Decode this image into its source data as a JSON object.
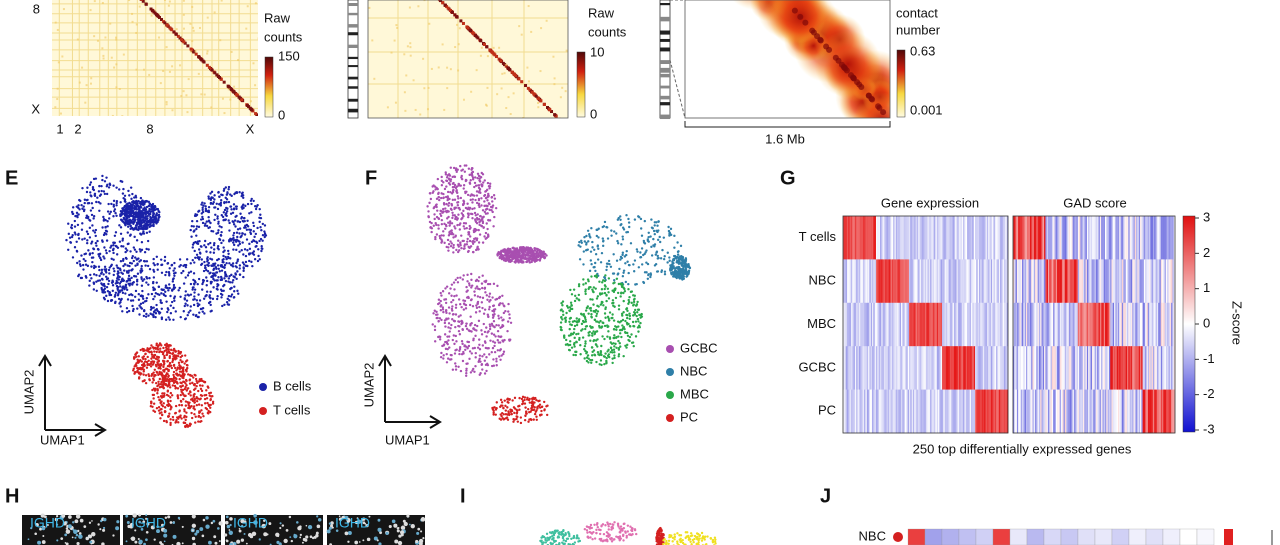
{
  "hic_genome": {
    "y_labels": [
      "8",
      "X"
    ],
    "x_labels": [
      "1",
      "2",
      "8",
      "X"
    ],
    "colorbar_title": [
      "Raw",
      "counts"
    ],
    "colorbar_max": 150,
    "colorbar_min": 0
  },
  "hic_chromosome": {
    "colorbar_title": [
      "Raw",
      "counts"
    ],
    "colorbar_max": 10,
    "colorbar_min": 0
  },
  "hic_region": {
    "colorbar_title": [
      "contact",
      "number"
    ],
    "colorbar_max": 0.63,
    "colorbar_min": 0.001,
    "scale_bar": "1.6 Mb"
  },
  "panel_e": {
    "label": "E",
    "y_axis": "UMAP2",
    "x_axis": "UMAP1",
    "legend": [
      "B cells",
      "T cells"
    ]
  },
  "panel_f": {
    "label": "F",
    "y_axis": "UMAP2",
    "x_axis": "UMAP1",
    "legend": [
      "GCBC",
      "NBC",
      "MBC",
      "PC"
    ]
  },
  "panel_g": {
    "label": "G",
    "titles": [
      "Gene expression",
      "GAD score"
    ],
    "rows": [
      "T cells",
      "NBC",
      "MBC",
      "GCBC",
      "PC"
    ],
    "colorbar_ticks": [
      3,
      2,
      1,
      0,
      -1,
      -2,
      -3
    ],
    "colorbar_title": "Z-score",
    "x_axis": "250 top differentially expressed genes"
  },
  "panel_h": {
    "label": "H",
    "images": [
      "IGHD",
      "IGHD",
      "IGHD",
      "IGHD"
    ]
  },
  "panel_i": {
    "label": "I"
  },
  "panel_j": {
    "label": "J",
    "row": "NBC"
  }
}
